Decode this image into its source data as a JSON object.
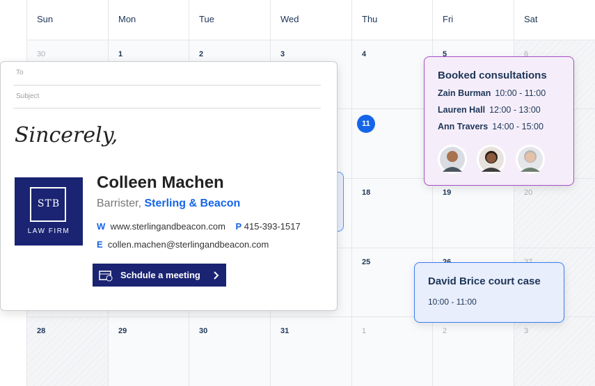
{
  "calendar": {
    "weekdays": [
      "Sun",
      "Mon",
      "Tue",
      "Wed",
      "Thu",
      "Fri",
      "Sat"
    ],
    "rows": [
      [
        "30",
        "1",
        "2",
        "3",
        "4",
        "5",
        "6"
      ],
      [
        null,
        null,
        null,
        null,
        "11",
        null,
        null
      ],
      [
        null,
        null,
        null,
        null,
        "18",
        "19",
        "20"
      ],
      [
        null,
        null,
        null,
        null,
        "25",
        "26",
        "27"
      ],
      [
        "28",
        "29",
        "30",
        "31",
        "1",
        "2",
        "3"
      ]
    ]
  },
  "email": {
    "to_label": "To",
    "subject_label": "Subject",
    "closing": "Sincerely,",
    "logo_text": "LAW FIRM",
    "logo_monogram": "STB",
    "name": "Colleen Machen",
    "role": "Barrister,",
    "firm": "Sterling & Beacon",
    "web_label": "W",
    "web": "www.sterlingandbeacon.com",
    "phone_label": "P",
    "phone": "415-393-1517",
    "email_label": "E",
    "email": "collen.machen@sterlingandbeacon.com",
    "button": "Schdule a meeting"
  },
  "booked": {
    "title": "Booked consultations",
    "items": [
      {
        "name": "Zain Burman",
        "time": "10:00 - 11:00"
      },
      {
        "name": "Lauren Hall",
        "time": "12:00 - 13:00"
      },
      {
        "name": "Ann Travers",
        "time": "14:00 - 15:00"
      }
    ]
  },
  "event": {
    "title": "David Brice court case",
    "time": "10:00 - 11:00"
  }
}
